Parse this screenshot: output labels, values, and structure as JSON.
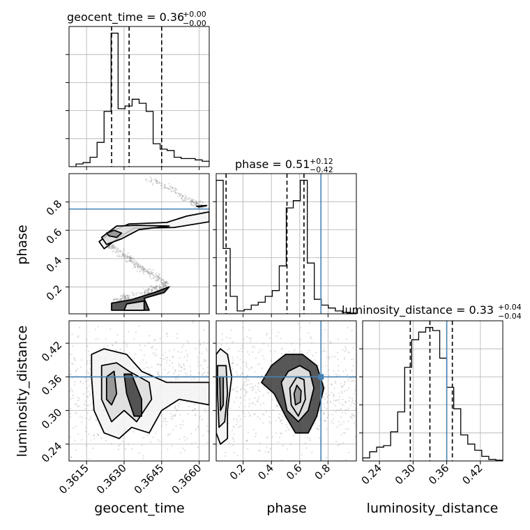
{
  "chart_data": {
    "type": "corner",
    "grid": true,
    "colors": {
      "hist": "#000000",
      "truth": "#4682b4",
      "quantile": "#000000",
      "grid": "#b0b0b0",
      "sample": "#7a7a7a",
      "fill_dark": "#3a3a3a",
      "fill_mid": "#8c8c8c",
      "fill_light": "#dcdcdc",
      "fill_faint": "#f3f3f3"
    },
    "parameters": [
      {
        "name": "geocent_time",
        "label": "geocent_time",
        "range": [
          0.3608,
          0.3664
        ],
        "ticks": [
          0.3615,
          0.363,
          0.3645,
          0.366
        ],
        "tick_labels": [
          "0.3615",
          "0.3630",
          "0.3645",
          "0.3660"
        ],
        "title": {
          "main": "geocent_time = 0.36",
          "plus": "+0.00",
          "minus": "−0.00"
        },
        "quantiles": [
          0.3625,
          0.3632,
          0.3645
        ],
        "truth": null,
        "hist": {
          "edges": [
            0.3608,
            0.36108,
            0.36136,
            0.36164,
            0.36192,
            0.3622,
            0.36248,
            0.36276,
            0.36304,
            0.36332,
            0.3636,
            0.36388,
            0.36416,
            0.36444,
            0.36472,
            0.365,
            0.36528,
            0.36556,
            0.36584,
            0.36612,
            0.3664
          ],
          "counts": [
            0.0,
            0.02,
            0.03,
            0.07,
            0.18,
            0.41,
            0.99,
            0.43,
            0.45,
            0.5,
            0.47,
            0.41,
            0.17,
            0.13,
            0.12,
            0.07,
            0.06,
            0.06,
            0.05,
            0.04
          ]
        }
      },
      {
        "name": "phase",
        "label": "phase",
        "range": [
          0.01,
          1.0
        ],
        "ticks": [
          0.2,
          0.4,
          0.6,
          0.8
        ],
        "tick_labels": [
          "0.2",
          "0.4",
          "0.6",
          "0.8"
        ],
        "title": {
          "main": "phase = 0.51",
          "plus": "+0.12",
          "minus": "−0.42"
        },
        "quantiles": [
          0.08,
          0.51,
          0.63
        ],
        "truth": 0.75,
        "hist": {
          "edges": [
            0.01,
            0.0595,
            0.109,
            0.1585,
            0.208,
            0.2575,
            0.307,
            0.3565,
            0.406,
            0.4555,
            0.505,
            0.5545,
            0.604,
            0.6535,
            0.703,
            0.7525,
            0.802,
            0.8515,
            0.901,
            0.9505,
            1.0
          ],
          "counts": [
            0.92,
            0.45,
            0.12,
            0.02,
            0.03,
            0.06,
            0.08,
            0.12,
            0.16,
            0.33,
            0.73,
            0.78,
            0.92,
            0.35,
            0.1,
            0.06,
            0.04,
            0.02,
            0.01,
            0.005
          ]
        }
      },
      {
        "name": "luminosity_distance",
        "label": "luminosity_distance",
        "range": [
          0.21,
          0.46
        ],
        "ticks": [
          0.24,
          0.3,
          0.36,
          0.42
        ],
        "tick_labels": [
          "0.24",
          "0.30",
          "0.36",
          "0.42"
        ],
        "title": {
          "main": "luminosity_distance = 0.33",
          "plus": "+0.04",
          "minus": "−0.04"
        },
        "quantiles": [
          0.295,
          0.33,
          0.37
        ],
        "truth": 0.36,
        "hist": {
          "edges": [
            0.21,
            0.2225,
            0.235,
            0.2475,
            0.26,
            0.2725,
            0.285,
            0.2975,
            0.31,
            0.3225,
            0.335,
            0.3475,
            0.36,
            0.3725,
            0.385,
            0.3975,
            0.41,
            0.4225,
            0.435,
            0.4475,
            0.46
          ],
          "counts": [
            0.02,
            0.06,
            0.09,
            0.1,
            0.19,
            0.32,
            0.61,
            0.79,
            0.84,
            0.87,
            0.85,
            0.67,
            0.48,
            0.34,
            0.17,
            0.11,
            0.07,
            0.03,
            0.01,
            0.005
          ]
        }
      }
    ],
    "panels_2d": [
      {
        "x": "geocent_time",
        "y": "phase",
        "truth_y": 0.75,
        "sample_curve": [
          [
            0.3621,
            0.53
          ],
          [
            0.3626,
            0.47
          ],
          [
            0.3632,
            0.4
          ],
          [
            0.3637,
            0.33
          ],
          [
            0.3643,
            0.27
          ],
          [
            0.3647,
            0.22
          ],
          [
            0.364,
            0.17
          ],
          [
            0.3632,
            0.13
          ],
          [
            0.3626,
            0.1
          ]
        ],
        "upper_curve": [
          [
            0.364,
            0.96
          ],
          [
            0.365,
            0.88
          ],
          [
            0.3657,
            0.8
          ],
          [
            0.3662,
            0.76
          ]
        ],
        "contours": [
          [
            [
              0.362,
              0.52
            ],
            [
              0.3626,
              0.6
            ],
            [
              0.3632,
              0.645
            ],
            [
              0.3647,
              0.655
            ],
            [
              0.3655,
              0.7
            ],
            [
              0.3664,
              0.73
            ],
            [
              0.3664,
              0.66
            ],
            [
              0.365,
              0.62
            ],
            [
              0.3634,
              0.615
            ],
            [
              0.3628,
              0.55
            ],
            [
              0.3622,
              0.47
            ]
          ],
          [
            [
              0.3621,
              0.55
            ],
            [
              0.3627,
              0.63
            ],
            [
              0.3635,
              0.635
            ],
            [
              0.3648,
              0.63
            ],
            [
              0.3636,
              0.605
            ],
            [
              0.3629,
              0.54
            ],
            [
              0.3623,
              0.5
            ]
          ],
          [
            [
              0.3623,
              0.58
            ],
            [
              0.3626,
              0.6
            ],
            [
              0.3629,
              0.58
            ],
            [
              0.3627,
              0.55
            ],
            [
              0.3624,
              0.56
            ]
          ],
          [
            [
              0.3625,
              0.035
            ],
            [
              0.3625,
              0.085
            ],
            [
              0.3633,
              0.11
            ],
            [
              0.3642,
              0.16
            ],
            [
              0.3648,
              0.2
            ],
            [
              0.3646,
              0.16
            ],
            [
              0.3638,
              0.12
            ],
            [
              0.364,
              0.035
            ]
          ],
          [
            [
              0.363,
              0.035
            ],
            [
              0.3631,
              0.08
            ],
            [
              0.3638,
              0.1
            ],
            [
              0.3638,
              0.035
            ]
          ],
          [
            [
              0.3659,
              0.77
            ],
            [
              0.3663,
              0.775
            ],
            [
              0.366,
              0.765
            ]
          ]
        ]
      },
      {
        "x": "geocent_time",
        "y": "luminosity_distance",
        "truth_y": 0.36,
        "contours": [
          [
            [
              0.3617,
              0.4
            ],
            [
              0.3622,
              0.41
            ],
            [
              0.3631,
              0.4
            ],
            [
              0.3637,
              0.37
            ],
            [
              0.3647,
              0.35
            ],
            [
              0.3664,
              0.35
            ],
            [
              0.3664,
              0.31
            ],
            [
              0.3652,
              0.32
            ],
            [
              0.3645,
              0.3
            ],
            [
              0.364,
              0.26
            ],
            [
              0.3633,
              0.27
            ],
            [
              0.3628,
              0.25
            ],
            [
              0.3622,
              0.26
            ],
            [
              0.3618,
              0.3
            ],
            [
              0.3617,
              0.36
            ]
          ],
          [
            [
              0.3621,
              0.38
            ],
            [
              0.3627,
              0.385
            ],
            [
              0.3632,
              0.37
            ],
            [
              0.364,
              0.35
            ],
            [
              0.3641,
              0.32
            ],
            [
              0.3635,
              0.28
            ],
            [
              0.363,
              0.3
            ],
            [
              0.3625,
              0.28
            ],
            [
              0.3621,
              0.32
            ]
          ],
          [
            [
              0.3623,
              0.36
            ],
            [
              0.3626,
              0.37
            ],
            [
              0.3627,
              0.33
            ],
            [
              0.3625,
              0.31
            ],
            [
              0.3623,
              0.32
            ]
          ],
          [
            [
              0.363,
              0.365
            ],
            [
              0.3633,
              0.365
            ],
            [
              0.3637,
              0.32
            ],
            [
              0.3637,
              0.29
            ],
            [
              0.3634,
              0.29
            ],
            [
              0.3631,
              0.33
            ]
          ]
        ]
      },
      {
        "x": "phase",
        "y": "luminosity_distance",
        "truth_x": 0.75,
        "truth_y": 0.36,
        "contours": [
          [
            [
              0.01,
              0.4
            ],
            [
              0.04,
              0.41
            ],
            [
              0.09,
              0.4
            ],
            [
              0.12,
              0.36
            ],
            [
              0.09,
              0.3
            ],
            [
              0.09,
              0.25
            ],
            [
              0.04,
              0.24
            ],
            [
              0.01,
              0.26
            ]
          ],
          [
            [
              0.02,
              0.38
            ],
            [
              0.08,
              0.38
            ],
            [
              0.09,
              0.33
            ],
            [
              0.07,
              0.28
            ],
            [
              0.03,
              0.27
            ],
            [
              0.02,
              0.33
            ]
          ],
          [
            [
              0.035,
              0.36
            ],
            [
              0.06,
              0.36
            ],
            [
              0.06,
              0.31
            ],
            [
              0.04,
              0.3
            ]
          ],
          [
            [
              0.33,
              0.35
            ],
            [
              0.4,
              0.38
            ],
            [
              0.5,
              0.4
            ],
            [
              0.62,
              0.4
            ],
            [
              0.72,
              0.38
            ],
            [
              0.77,
              0.34
            ],
            [
              0.72,
              0.29
            ],
            [
              0.66,
              0.26
            ],
            [
              0.57,
              0.26
            ],
            [
              0.5,
              0.29
            ],
            [
              0.42,
              0.33
            ]
          ],
          [
            [
              0.47,
              0.35
            ],
            [
              0.52,
              0.37
            ],
            [
              0.6,
              0.38
            ],
            [
              0.67,
              0.37
            ],
            [
              0.7,
              0.34
            ],
            [
              0.66,
              0.3
            ],
            [
              0.59,
              0.28
            ],
            [
              0.51,
              0.3
            ]
          ],
          [
            [
              0.53,
              0.34
            ],
            [
              0.58,
              0.36
            ],
            [
              0.63,
              0.355
            ],
            [
              0.64,
              0.32
            ],
            [
              0.59,
              0.29
            ],
            [
              0.54,
              0.31
            ]
          ],
          [
            [
              0.56,
              0.33
            ],
            [
              0.58,
              0.345
            ],
            [
              0.61,
              0.335
            ],
            [
              0.605,
              0.315
            ],
            [
              0.57,
              0.31
            ]
          ]
        ]
      }
    ]
  }
}
